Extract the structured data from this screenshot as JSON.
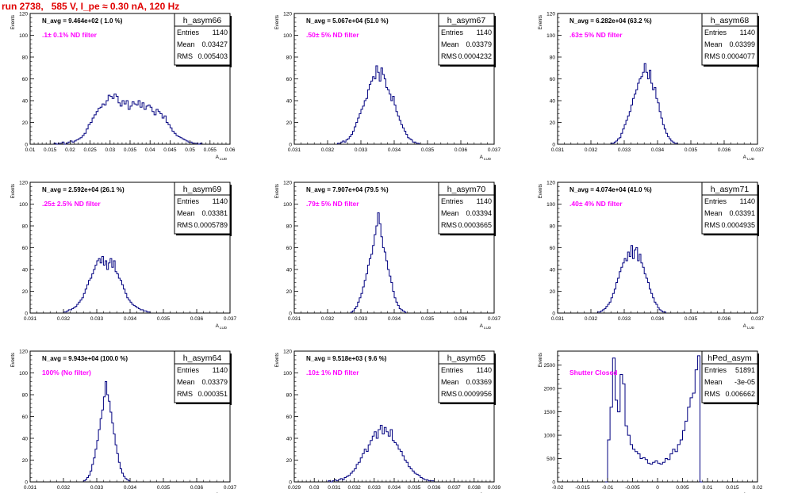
{
  "page": {
    "title": "run 2738,   585 V, I_pe ≈ 0.30 nA, 120 Hz"
  },
  "chart_data": [
    {
      "type": "bar",
      "name": "h_asym66",
      "title": "h_asym66",
      "note": "N_avg = 9.464e+02 ( 1.0 %)",
      "filter": ".1± 0.1% ND filter",
      "stats": {
        "entries_label": "Entries",
        "entries": "1140",
        "mean_label": "Mean",
        "mean": "0.03427",
        "rms_label": "RMS",
        "rms": "0.005403"
      },
      "ylabel": "Events",
      "xlabel": "A",
      "xlabel_sub": "LUD",
      "xlim": [
        0.01,
        0.06
      ],
      "ylim": [
        0,
        120
      ],
      "xticks": [
        "0.01",
        "0.015",
        "0.02",
        "0.025",
        "0.03",
        "0.035",
        "0.04",
        "0.045",
        "0.05",
        "0.055",
        "0.06"
      ],
      "yticks": [
        "0",
        "20",
        "40",
        "60",
        "80",
        "100",
        "120"
      ],
      "hist_start": 0.016,
      "hist_width": 0.0005,
      "values": [
        1,
        0,
        1,
        1,
        2,
        0,
        1,
        2,
        3,
        2,
        3,
        4,
        5,
        6,
        8,
        10,
        14,
        18,
        20,
        24,
        27,
        30,
        33,
        34,
        37,
        36,
        40,
        45,
        44,
        42,
        46,
        44,
        38,
        35,
        40,
        37,
        40,
        32,
        35,
        39,
        37,
        36,
        40,
        34,
        38,
        32,
        35,
        36,
        34,
        30,
        27,
        32,
        30,
        28,
        24,
        26,
        20,
        18,
        15,
        12,
        10,
        8,
        7,
        6,
        5,
        4,
        3,
        2,
        2,
        1,
        1,
        1,
        0,
        1
      ]
    },
    {
      "type": "bar",
      "name": "h_asym67",
      "title": "h_asym67",
      "note": "N_avg = 5.067e+04 (51.0 %)",
      "filter": ".50± 5% ND filter",
      "stats": {
        "entries_label": "Entries",
        "entries": "1140",
        "mean_label": "Mean",
        "mean": "0.03379",
        "rms_label": "RMS",
        "rms": "0.0004232"
      },
      "ylabel": "Events",
      "xlabel": "A",
      "xlabel_sub": "LUD",
      "xlim": [
        0.031,
        0.037
      ],
      "ylim": [
        0,
        120
      ],
      "xticks": [
        "0.031",
        "0.032",
        "0.033",
        "0.034",
        "0.035",
        "0.036",
        "0.037"
      ],
      "yticks": [
        "0",
        "20",
        "40",
        "60",
        "80",
        "100",
        "120"
      ],
      "hist_start": 0.0323,
      "hist_width": 5e-05,
      "values": [
        1,
        1,
        2,
        3,
        2,
        4,
        5,
        7,
        9,
        12,
        16,
        20,
        24,
        28,
        32,
        35,
        40,
        42,
        50,
        55,
        58,
        62,
        60,
        72,
        66,
        58,
        70,
        64,
        60,
        52,
        50,
        46,
        40,
        44,
        36,
        30,
        26,
        22,
        18,
        15,
        12,
        9,
        6,
        5,
        4,
        2,
        2,
        1,
        1
      ]
    },
    {
      "type": "bar",
      "name": "h_asym68",
      "title": "h_asym68",
      "note": "N_avg = 6.282e+04 (63.2 %)",
      "filter": ".63± 5% ND filter",
      "stats": {
        "entries_label": "Entries",
        "entries": "1140",
        "mean_label": "Mean",
        "mean": "0.03399",
        "rms_label": "RMS",
        "rms": "0.0004077"
      },
      "ylabel": "Events",
      "xlabel": "A",
      "xlabel_sub": "LUD",
      "xlim": [
        0.031,
        0.037
      ],
      "ylim": [
        0,
        120
      ],
      "xticks": [
        "0.031",
        "0.032",
        "0.033",
        "0.034",
        "0.035",
        "0.036",
        "0.037"
      ],
      "yticks": [
        "0",
        "20",
        "40",
        "60",
        "80",
        "100",
        "120"
      ],
      "hist_start": 0.0326,
      "hist_width": 5e-05,
      "values": [
        1,
        1,
        2,
        3,
        5,
        6,
        10,
        14,
        18,
        22,
        26,
        30,
        36,
        42,
        46,
        50,
        56,
        60,
        62,
        66,
        74,
        66,
        60,
        68,
        56,
        50,
        52,
        42,
        38,
        30,
        24,
        18,
        14,
        10,
        7,
        5,
        3,
        2,
        1,
        1
      ]
    },
    {
      "type": "bar",
      "name": "h_asym69",
      "title": "h_asym69",
      "note": "N_avg = 2.592e+04 (26.1 %)",
      "filter": ".25± 2.5% ND filter",
      "stats": {
        "entries_label": "Entries",
        "entries": "1140",
        "mean_label": "Mean",
        "mean": "0.03381",
        "rms_label": "RMS",
        "rms": "0.0005789"
      },
      "ylabel": "Events",
      "xlabel": "A",
      "xlabel_sub": "LUD",
      "xlim": [
        0.031,
        0.037
      ],
      "ylim": [
        0,
        120
      ],
      "xticks": [
        "0.031",
        "0.032",
        "0.033",
        "0.034",
        "0.035",
        "0.036",
        "0.037"
      ],
      "yticks": [
        "0",
        "20",
        "40",
        "60",
        "80",
        "100",
        "120"
      ],
      "hist_start": 0.032,
      "hist_width": 5e-05,
      "values": [
        1,
        1,
        2,
        3,
        3,
        4,
        5,
        6,
        8,
        10,
        12,
        14,
        18,
        22,
        26,
        30,
        32,
        36,
        40,
        44,
        48,
        50,
        46,
        52,
        44,
        48,
        40,
        46,
        50,
        42,
        48,
        38,
        36,
        32,
        30,
        26,
        22,
        18,
        14,
        12,
        10,
        8,
        7,
        6,
        5,
        4,
        3,
        3,
        2,
        2,
        1,
        1
      ]
    },
    {
      "type": "bar",
      "name": "h_asym70",
      "title": "h_asym70",
      "note": "N_avg = 7.907e+04 (79.5 %)",
      "filter": ".79± 5% ND filter",
      "stats": {
        "entries_label": "Entries",
        "entries": "1140",
        "mean_label": "Mean",
        "mean": "0.03394",
        "rms_label": "RMS",
        "rms": "0.0003665"
      },
      "ylabel": "Events",
      "xlabel": "A",
      "xlabel_sub": "LUD",
      "xlim": [
        0.031,
        0.037
      ],
      "ylim": [
        0,
        120
      ],
      "xticks": [
        "0.031",
        "0.032",
        "0.033",
        "0.034",
        "0.035",
        "0.036",
        "0.037"
      ],
      "yticks": [
        "0",
        "20",
        "40",
        "60",
        "80",
        "100",
        "120"
      ],
      "hist_start": 0.0327,
      "hist_width": 5e-05,
      "values": [
        1,
        2,
        4,
        6,
        10,
        14,
        18,
        24,
        30,
        36,
        44,
        50,
        54,
        62,
        72,
        80,
        92,
        82,
        70,
        60,
        56,
        48,
        40,
        34,
        28,
        20,
        14,
        10,
        7,
        4,
        3,
        2,
        1
      ]
    },
    {
      "type": "bar",
      "name": "h_asym71",
      "title": "h_asym71",
      "note": "N_avg = 4.074e+04 (41.0 %)",
      "filter": ".40± 4% ND filter",
      "stats": {
        "entries_label": "Entries",
        "entries": "1140",
        "mean_label": "Mean",
        "mean": "0.03391",
        "rms_label": "RMS",
        "rms": "0.0004935"
      },
      "ylabel": "Events",
      "xlabel": "A",
      "xlabel_sub": "LUD",
      "xlim": [
        0.031,
        0.037
      ],
      "ylim": [
        0,
        120
      ],
      "xticks": [
        "0.031",
        "0.032",
        "0.033",
        "0.034",
        "0.035",
        "0.036",
        "0.037"
      ],
      "yticks": [
        "0",
        "20",
        "40",
        "60",
        "80",
        "100",
        "120"
      ],
      "hist_start": 0.0322,
      "hist_width": 5e-05,
      "values": [
        1,
        1,
        2,
        3,
        4,
        6,
        8,
        10,
        14,
        18,
        22,
        28,
        32,
        38,
        42,
        46,
        50,
        48,
        56,
        52,
        62,
        50,
        58,
        60,
        48,
        54,
        46,
        42,
        36,
        32,
        28,
        22,
        18,
        14,
        10,
        8,
        5,
        3,
        2,
        1,
        1
      ]
    },
    {
      "type": "bar",
      "name": "h_asym64",
      "title": "h_asym64",
      "note": "N_avg = 9.943e+04 (100.0 %)",
      "filter": "100% (No filter)",
      "stats": {
        "entries_label": "Entries",
        "entries": "1140",
        "mean_label": "Mean",
        "mean": "0.03379",
        "rms_label": "RMS",
        "rms": "0.000351"
      },
      "ylabel": "Events",
      "xlabel": "A",
      "xlabel_sub": "LUD",
      "xlim": [
        0.031,
        0.037
      ],
      "ylim": [
        0,
        120
      ],
      "xticks": [
        "0.031",
        "0.032",
        "0.033",
        "0.034",
        "0.035",
        "0.036",
        "0.037"
      ],
      "yticks": [
        "0",
        "20",
        "40",
        "60",
        "80",
        "100",
        "120"
      ],
      "hist_start": 0.0326,
      "hist_width": 5e-05,
      "values": [
        1,
        2,
        4,
        6,
        10,
        16,
        22,
        30,
        38,
        48,
        58,
        66,
        78,
        92,
        80,
        74,
        64,
        54,
        44,
        34,
        26,
        18,
        12,
        8,
        5,
        3,
        2,
        1
      ]
    },
    {
      "type": "bar",
      "name": "h_asym65",
      "title": "h_asym65",
      "note": "N_avg = 9.518e+03 ( 9.6 %)",
      "filter": ".10± 1% ND filter",
      "stats": {
        "entries_label": "Entries",
        "entries": "1140",
        "mean_label": "Mean",
        "mean": "0.03369",
        "rms_label": "RMS",
        "rms": "0.0009956"
      },
      "ylabel": "Events",
      "xlabel": "A",
      "xlabel_sub": "LUD",
      "xlim": [
        0.029,
        0.039
      ],
      "ylim": [
        0,
        120
      ],
      "xticks": [
        "0.029",
        "0.03",
        "0.031",
        "0.032",
        "0.033",
        "0.034",
        "0.035",
        "0.036",
        "0.037",
        "0.038",
        "0.039"
      ],
      "yticks": [
        "0",
        "20",
        "40",
        "60",
        "80",
        "100",
        "120"
      ],
      "hist_start": 0.0307,
      "hist_width": 0.0001,
      "values": [
        1,
        0,
        1,
        2,
        1,
        2,
        3,
        2,
        4,
        5,
        6,
        8,
        10,
        12,
        16,
        18,
        22,
        26,
        30,
        28,
        34,
        38,
        42,
        46,
        40,
        48,
        52,
        44,
        50,
        46,
        42,
        48,
        38,
        36,
        34,
        30,
        28,
        24,
        20,
        18,
        14,
        12,
        10,
        8,
        7,
        6,
        4,
        3,
        2,
        2,
        1,
        1,
        1
      ]
    },
    {
      "type": "bar",
      "name": "hPed_asym",
      "title": "hPed_asym",
      "note": "",
      "filter": "Shutter Closed",
      "stats": {
        "entries_label": "Entries",
        "entries": "51891",
        "mean_label": "Mean",
        "mean": "-3e-05",
        "rms_label": "RMS",
        "rms": "0.006662"
      },
      "ylabel": "Events",
      "xlabel": "A",
      "xlabel_sub": "LUD",
      "xlim": [
        -0.02,
        0.02
      ],
      "ylim": [
        0,
        2800
      ],
      "xticks": [
        "-0.02",
        "-0.015",
        "-0.01",
        "-0.005",
        "0",
        "0.005",
        "0.01",
        "0.015",
        "0.02"
      ],
      "yticks": [
        "0",
        "500",
        "1000",
        "1500",
        "2000",
        "2500"
      ],
      "hist_start": -0.0105,
      "hist_width": 0.0005,
      "values": [
        0,
        900,
        1600,
        2650,
        1750,
        1500,
        2300,
        2100,
        1200,
        1000,
        800,
        700,
        650,
        600,
        500,
        520,
        480,
        400,
        380,
        420,
        450,
        400,
        380,
        420,
        500,
        480,
        600,
        700,
        650,
        800,
        900,
        1100,
        1300,
        1600,
        1800,
        1900,
        2400,
        2700,
        0
      ]
    }
  ]
}
